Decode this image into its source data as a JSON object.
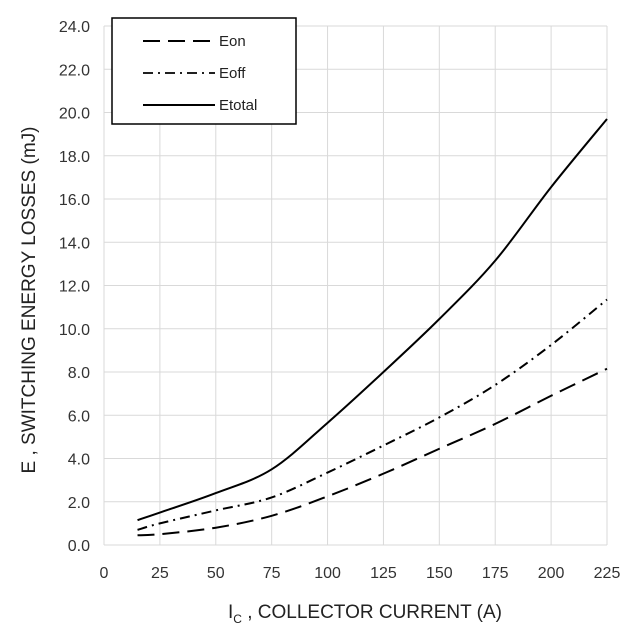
{
  "chart_data": {
    "type": "line",
    "title": "",
    "xlabel": {
      "main": "I",
      "sub": "C",
      "rest": " , COLLECTOR CURRENT (A)"
    },
    "ylabel": "E , SWITCHING ENERGY LOSSES (mJ)",
    "xlim": [
      0,
      225
    ],
    "ylim": [
      0,
      24
    ],
    "x_ticks": [
      "0",
      "25",
      "50",
      "75",
      "100",
      "125",
      "150",
      "175",
      "200",
      "225"
    ],
    "y_ticks": [
      "0.0",
      "2.0",
      "4.0",
      "6.0",
      "8.0",
      "10.0",
      "12.0",
      "14.0",
      "16.0",
      "18.0",
      "20.0",
      "22.0",
      "24.0"
    ],
    "grid": true,
    "legend_position": "top-left",
    "series": [
      {
        "name": "Eon",
        "style": "dashed",
        "x": [
          15,
          25,
          50,
          75,
          100,
          125,
          150,
          175,
          200,
          225
        ],
        "y": [
          0.45,
          0.5,
          0.8,
          1.35,
          2.25,
          3.3,
          4.45,
          5.6,
          6.9,
          8.15
        ]
      },
      {
        "name": "Eoff",
        "style": "dash-dot",
        "x": [
          15,
          25,
          50,
          75,
          100,
          125,
          150,
          175,
          200,
          225
        ],
        "y": [
          0.7,
          1.0,
          1.6,
          2.2,
          3.35,
          4.6,
          5.9,
          7.4,
          9.25,
          11.35
        ]
      },
      {
        "name": "Etotal",
        "style": "solid",
        "x": [
          15,
          25,
          50,
          75,
          100,
          125,
          150,
          175,
          200,
          225
        ],
        "y": [
          1.15,
          1.5,
          2.4,
          3.5,
          5.65,
          8.0,
          10.45,
          13.15,
          16.55,
          19.7
        ]
      }
    ],
    "colors": {
      "line": "#000000",
      "grid": "#d9d9d9",
      "text": "#333333"
    }
  }
}
